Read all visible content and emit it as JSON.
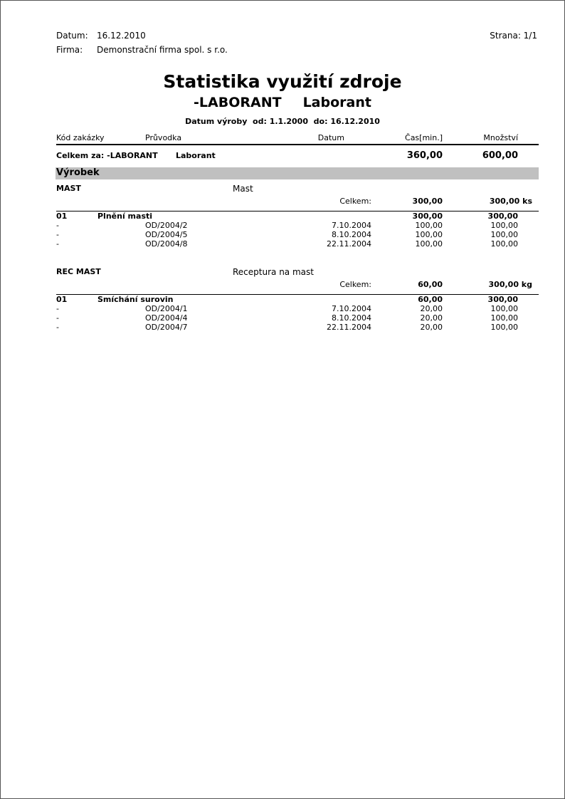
{
  "header": {
    "date_label": "Datum:",
    "date_value": "16.12.2010",
    "page_label": "Strana: 1/1",
    "company_label": "Firma:",
    "company_value": "Demonstrační firma spol. s r.o."
  },
  "report": {
    "title": "Statistika využití zdroje",
    "resource_code": "-LABORANT",
    "resource_name": "Laborant",
    "date_range": "Datum výroby  od: 1.1.2000  do: 16.12.2010"
  },
  "columns": {
    "order_code": "Kód zakázky",
    "job_card": "Průvodka",
    "date": "Datum",
    "time": "Čas[min.]",
    "quantity": "Množství"
  },
  "grand_total": {
    "label": "Celkem za: -LABORANT",
    "name": "Laborant",
    "time": "360,00",
    "quantity": "600,00"
  },
  "section_title": "Výrobek",
  "groups": [
    {
      "code": "MAST",
      "name": "Mast",
      "total_label": "Celkem:",
      "total_time": "300,00",
      "total_quantity": "300,00 ks",
      "operation": {
        "code": "01",
        "name": "Plnění masti",
        "time": "300,00",
        "quantity": "300,00"
      },
      "rows": [
        {
          "dash": "-",
          "job_card": "OD/2004/2",
          "date": "7.10.2004",
          "time": "100,00",
          "quantity": "100,00"
        },
        {
          "dash": "-",
          "job_card": "OD/2004/5",
          "date": "8.10.2004",
          "time": "100,00",
          "quantity": "100,00"
        },
        {
          "dash": "-",
          "job_card": "OD/2004/8",
          "date": "22.11.2004",
          "time": "100,00",
          "quantity": "100,00"
        }
      ]
    },
    {
      "code": "REC MAST",
      "name": "Receptura na mast",
      "total_label": "Celkem:",
      "total_time": "60,00",
      "total_quantity": "300,00 kg",
      "operation": {
        "code": "01",
        "name": "Smíchání surovin",
        "time": "60,00",
        "quantity": "300,00"
      },
      "rows": [
        {
          "dash": "-",
          "job_card": "OD/2004/1",
          "date": "7.10.2004",
          "time": "20,00",
          "quantity": "100,00"
        },
        {
          "dash": "-",
          "job_card": "OD/2004/4",
          "date": "8.10.2004",
          "time": "20,00",
          "quantity": "100,00"
        },
        {
          "dash": "-",
          "job_card": "OD/2004/7",
          "date": "22.11.2004",
          "time": "20,00",
          "quantity": "100,00"
        }
      ]
    }
  ]
}
